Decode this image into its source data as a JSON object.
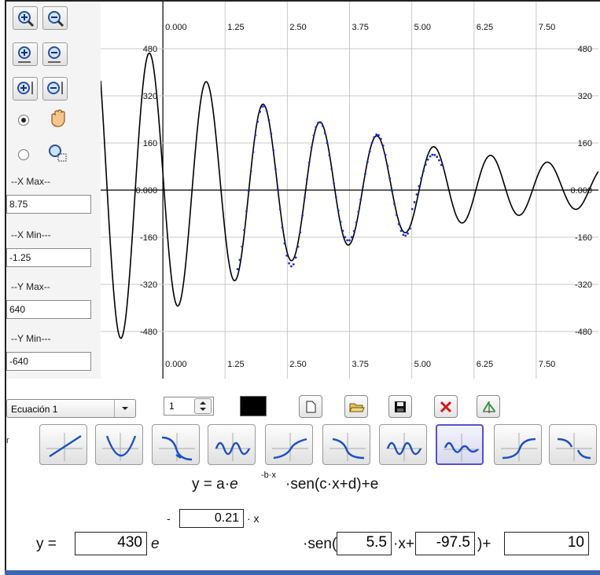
{
  "zoom_tools": {
    "zoom_in": "zoom-in",
    "zoom_out": "zoom-out"
  },
  "panel": {
    "xmax_label": "--X Max--",
    "xmax_value": "8.75",
    "xmin_label": "--X Min---",
    "xmin_value": "-1.25",
    "ymax_label": "--Y Max--",
    "ymax_value": "640",
    "ymin_label": "--Y Min---",
    "ymin_value": "-640"
  },
  "plot": {
    "x_ticks": [
      "0.000",
      "1.25",
      "2.50",
      "3.75",
      "5.00",
      "6.25",
      "7.50"
    ],
    "y_ticks_left": [
      "480",
      "320",
      "160",
      "0.000",
      "-160",
      "-320",
      "-480"
    ],
    "y_ticks_right": [
      "480",
      "320",
      "160",
      "0.000",
      "-160",
      "-320",
      "-480"
    ]
  },
  "chart_data": {
    "type": "line",
    "xlim": [
      -1.25,
      8.75
    ],
    "ylim": [
      -640,
      640
    ],
    "grid": true,
    "series": [
      {
        "kind": "function",
        "formula": "y = a·e^(-b·x)·sen(c·x+d)+e",
        "a": 430,
        "b": 0.21,
        "c": 5.5,
        "d": -97.5,
        "e": 10,
        "color": "#000000"
      },
      {
        "kind": "points",
        "color": "#1a2bd6",
        "x_range": [
          1.5,
          5.6
        ]
      }
    ]
  },
  "toolbar": {
    "equation_selector": "Ecuación 1",
    "spinner_value": "1",
    "color": "#000000"
  },
  "left_cut_label": "r",
  "equation": {
    "display_prefix": "y = a·",
    "display_e": "e",
    "display_exponent": "-b·x",
    "display_suffix": "·sen(c·x+d)+e",
    "minus": "-",
    "b_value": "0.21",
    "times_x": "· x",
    "y_eq": "y =",
    "a_value": "430",
    "e_symbol": "e",
    "sen_open": "·sen(",
    "c_value": "5.5",
    "x_plus": "·x+",
    "d_value": "-97.5",
    "close_plus": ")+",
    "e_value": "10"
  }
}
